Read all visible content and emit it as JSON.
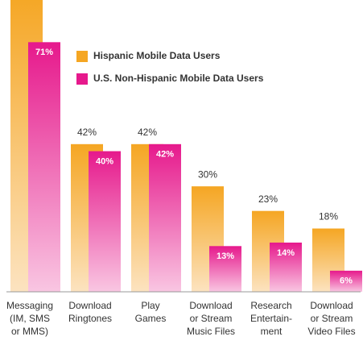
{
  "chart_data": {
    "type": "bar",
    "categories": [
      [
        "Messaging",
        "(IM, SMS",
        "or MMS)"
      ],
      [
        "Download",
        "Ringtones"
      ],
      [
        "Play",
        "Games"
      ],
      [
        "Download",
        "or Stream",
        "Music Files"
      ],
      [
        "Research",
        "Entertain-",
        "ment"
      ],
      [
        "Download",
        "or Stream",
        "Video Files"
      ]
    ],
    "series": [
      {
        "name": "Hispanic Mobile Data Users",
        "color": "#f5a623",
        "values": [
          85,
          42,
          42,
          30,
          23,
          18
        ],
        "value_labels": [
          null,
          "42%",
          "42%",
          "30%",
          "23%",
          "18%"
        ]
      },
      {
        "name": "U.S. Non-Hispanic Mobile Data Users",
        "color": "#e6198c",
        "values": [
          71,
          40,
          42,
          13,
          14,
          6
        ],
        "value_labels": [
          "71%",
          "40%",
          "42%",
          "13%",
          "14%",
          "6%"
        ]
      }
    ],
    "ylim": [
      0,
      83
    ]
  }
}
